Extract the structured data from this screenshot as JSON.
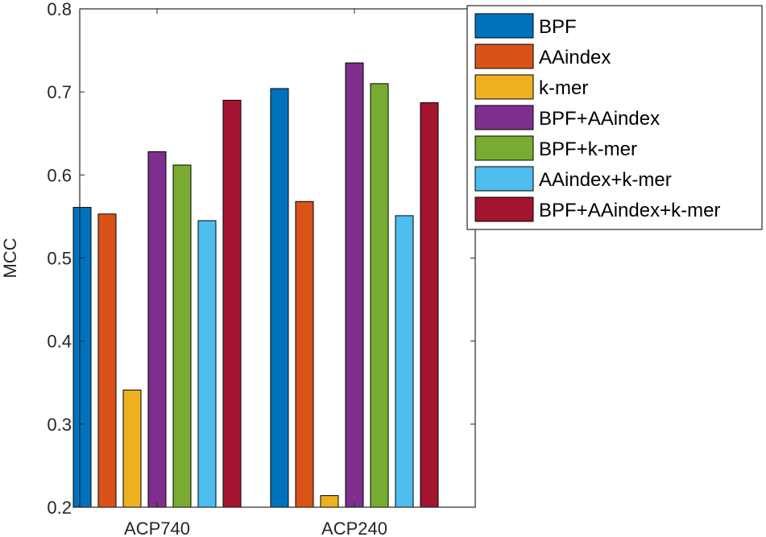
{
  "chart_data": {
    "type": "bar",
    "title": "",
    "xlabel": "",
    "ylabel": "MCC",
    "ylim": [
      0.2,
      0.8
    ],
    "yticks": [
      "0.2",
      "0.3",
      "0.4",
      "0.5",
      "0.6",
      "0.7",
      "0.8"
    ],
    "categories": [
      "ACP740",
      "ACP240"
    ],
    "grid": false,
    "legend_position": "outside-right-top",
    "series": [
      {
        "name": "BPF",
        "color": "#0072BD",
        "values": [
          0.561,
          0.704
        ]
      },
      {
        "name": "AAindex",
        "color": "#D95319",
        "values": [
          0.553,
          0.568
        ]
      },
      {
        "name": "k-mer",
        "color": "#EDB120",
        "values": [
          0.341,
          0.214
        ]
      },
      {
        "name": "BPF+AAindex",
        "color": "#7E2F8E",
        "values": [
          0.628,
          0.735
        ]
      },
      {
        "name": "BPF+k-mer",
        "color": "#77AC30",
        "values": [
          0.612,
          0.71
        ]
      },
      {
        "name": "AAindex+k-mer",
        "color": "#4DBEEE",
        "values": [
          0.545,
          0.551
        ]
      },
      {
        "name": "BPF+AAindex+k-mer",
        "color": "#A2142F",
        "values": [
          0.69,
          0.687
        ]
      }
    ]
  }
}
